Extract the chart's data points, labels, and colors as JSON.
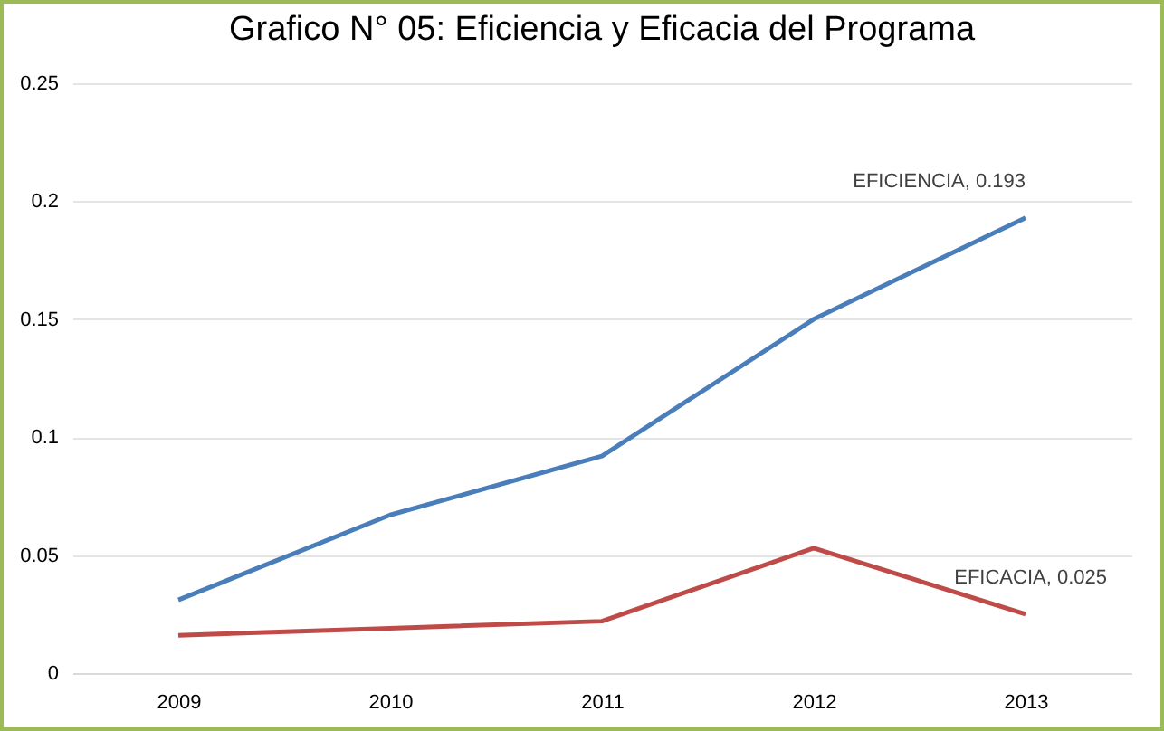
{
  "chart_data": {
    "type": "line",
    "title": "Grafico N° 05: Eficiencia y Eficacia del Programa",
    "categories": [
      "2009",
      "2010",
      "2011",
      "2012",
      "2013"
    ],
    "series": [
      {
        "color": "#4a7ebb",
        "values": [
          0.031,
          0.067,
          0.092,
          0.15,
          0.193
        ]
      },
      {
        "color": "#be4b48",
        "values": [
          0.016,
          0.019,
          0.022,
          0.053,
          0.025
        ]
      }
    ],
    "ylim": [
      0,
      0.25
    ],
    "yticks": [
      0,
      0.05,
      0.1,
      0.15,
      0.2,
      0.25
    ],
    "grid": "y",
    "annotations": [
      {
        "text": "EFICIENCIA, 0.193",
        "x": "2013",
        "y": 0.193
      },
      {
        "text": "EFICACIA, 0.025",
        "x": "2013",
        "y": 0.025
      }
    ]
  }
}
